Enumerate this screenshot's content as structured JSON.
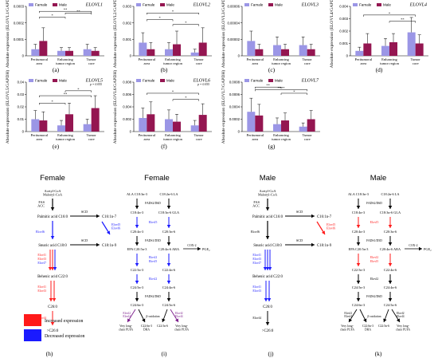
{
  "colors": {
    "female": "#9b96e6",
    "male": "#941651",
    "increased": "#ff1a1a",
    "decreased": "#1a1aff",
    "error": "#000000",
    "neutral": "#000000"
  },
  "legend": {
    "female": "Famale",
    "male": "Male"
  },
  "categories": [
    "Peritumoral area",
    "Enhancing tumor region",
    "Tumor core"
  ],
  "chart_data": [
    {
      "type": "bar",
      "panel": "(a)",
      "gene": "ELOVL1",
      "ylabel": "Absolute expression (ELOVL1/GAPDH)",
      "yticks": [
        "0",
        "0.0001",
        "0.0002",
        "0.0003"
      ],
      "ylim": [
        0,
        0.0003
      ],
      "categories": [
        "Peritumoral area",
        "Enhancing tumor region",
        "Tumor core"
      ],
      "series": [
        {
          "name": "Famale",
          "values": [
            4e-05,
            3e-05,
            4e-05
          ],
          "err": [
            3e-05,
            2e-05,
            3e-05
          ]
        },
        {
          "name": "Male",
          "values": [
            9e-05,
            3e-05,
            3e-05
          ],
          "err": [
            8e-05,
            2e-05,
            2e-05
          ]
        }
      ],
      "annotations": [
        "*",
        "**",
        "**",
        "*"
      ]
    },
    {
      "type": "bar",
      "panel": "(b)",
      "gene": "ELOVL2",
      "ylabel": "Absolute expression (ELOVL2/GAPDH)",
      "yticks": [
        "0",
        "0.001",
        "0.002",
        "0.003"
      ],
      "ylim": [
        0,
        0.003
      ],
      "categories": [
        "Peritumoral area",
        "Enhancing tumor region",
        "Tumor core"
      ],
      "series": [
        {
          "name": "Famale",
          "values": [
            0.0008,
            0.0004,
            0.0002
          ],
          "err": [
            0.0006,
            0.0004,
            0.0002
          ]
        },
        {
          "name": "Male",
          "values": [
            0.0004,
            0.0007,
            0.0008
          ],
          "err": [
            0.0004,
            0.0008,
            0.0009
          ]
        }
      ],
      "annotations": [
        "*",
        "*",
        "*",
        "*",
        "*"
      ]
    },
    {
      "type": "bar",
      "panel": "(c)",
      "gene": "ELOVL3",
      "ylabel": "Absolute expression (ELOVL3/GAPDH)",
      "yticks": [
        "0",
        "0.00002",
        "0.00004",
        "0.00006"
      ],
      "ylim": [
        0,
        6e-05
      ],
      "categories": [
        "Peritumoral area",
        "Enhancing tumor region",
        "Tumor core"
      ],
      "series": [
        {
          "name": "Famale",
          "values": [
            1.8e-05,
            1.3e-05,
            1.3e-05
          ],
          "err": [
            1.2e-05,
            1e-05,
            1e-05
          ]
        },
        {
          "name": "Male",
          "values": [
            8e-06,
            8e-06,
            8e-06
          ],
          "err": [
            6e-06,
            6e-06,
            6e-06
          ]
        }
      ],
      "annotations": []
    },
    {
      "type": "bar",
      "panel": "(d)",
      "gene": "ELOVL4",
      "ylabel": "Absolute expression (ELOVL4/GAPDH)",
      "yticks": [
        "0",
        "0.001",
        "0.002",
        "0.003",
        "0.004"
      ],
      "ylim": [
        0,
        0.004
      ],
      "categories": [
        "Peritumoral area",
        "Enhancing tumor region",
        "Tumor core"
      ],
      "series": [
        {
          "name": "Famale",
          "values": [
            0.0004,
            0.0008,
            0.0019
          ],
          "err": [
            0.0003,
            0.0006,
            0.0012
          ]
        },
        {
          "name": "Male",
          "values": [
            0.001,
            0.0011,
            0.001
          ],
          "err": [
            0.0008,
            0.0007,
            0.0007
          ]
        }
      ],
      "annotations": [
        "*",
        "**"
      ]
    },
    {
      "type": "bar",
      "panel": "(e)",
      "gene": "ELOVL5",
      "ylabel": "Absolute expression (ELOVL5/GAPDH)",
      "yticks": [
        "0",
        "0.01",
        "0.02",
        "0.03",
        "0.04"
      ],
      "ylim": [
        0,
        0.04
      ],
      "categories": [
        "Peritumoral area",
        "Enhancing tumor region",
        "Tumor core"
      ],
      "series": [
        {
          "name": "Famale",
          "values": [
            0.01,
            0.005,
            0.006
          ],
          "err": [
            0.007,
            0.004,
            0.004
          ]
        },
        {
          "name": "Male",
          "values": [
            0.009,
            0.014,
            0.019
          ],
          "err": [
            0.007,
            0.009,
            0.01
          ]
        }
      ],
      "annotations": [
        "p = 0.055",
        "*",
        "**",
        "*",
        "*",
        "**",
        "*"
      ]
    },
    {
      "type": "bar",
      "panel": "(f)",
      "gene": "ELOVL6",
      "ylabel": "Absolute expression (ELOVL6/GAPDH)",
      "yticks": [
        "0",
        "0.002",
        "0.004",
        "0.006",
        "0.008"
      ],
      "ylim": [
        0,
        0.008
      ],
      "categories": [
        "Peritumoral area",
        "Enhancing tumor region",
        "Tumor core"
      ],
      "series": [
        {
          "name": "Famale",
          "values": [
            0.0022,
            0.002,
            0.001
          ],
          "err": [
            0.0016,
            0.0015,
            0.0008
          ]
        },
        {
          "name": "Male",
          "values": [
            0.0028,
            0.0016,
            0.0027
          ],
          "err": [
            0.002,
            0.0012,
            0.0018
          ]
        }
      ],
      "annotations": [
        "p = 0.055",
        "*",
        "*"
      ]
    },
    {
      "type": "bar",
      "panel": "(g)",
      "gene": "ELOVL7",
      "ylabel": "Absolute expression (ELOVL7/GAPDH)",
      "yticks": [
        "0",
        "0.0002",
        "0.0004",
        "0.0006",
        "0.0008"
      ],
      "ylim": [
        0,
        0.0008
      ],
      "categories": [
        "Peritumoral area",
        "Enhancing tumor region",
        "Tumor core"
      ],
      "series": [
        {
          "name": "Famale",
          "values": [
            0.00032,
            0.00012,
            8e-05
          ],
          "err": [
            0.00022,
            0.0001,
            6e-05
          ]
        },
        {
          "name": "Male",
          "values": [
            0.00026,
            0.00018,
            0.0002
          ],
          "err": [
            0.00018,
            0.00012,
            0.00014
          ]
        }
      ],
      "annotations": [
        "**",
        "**",
        "****",
        "*",
        "****",
        "****"
      ]
    }
  ],
  "pathway_panels": [
    {
      "panel": "(h)",
      "title": "Female",
      "nodes": [
        "Acetyl-CoA\nMalonyl-CoA",
        "FAS\nACC",
        "Palmitic acid C16:0",
        "SCD",
        "C16:1n-7",
        "Elovl6",
        "Elovl5\nElovl6",
        "Stearic acid C18:0",
        "SCD",
        "C18:1n-9",
        "Elovl1\nElovl3\nElovl7",
        "Behenic acid C22:0",
        "Elovl1\nElovl3",
        "C26:0",
        "Elovl4",
        ">C26:0"
      ]
    },
    {
      "panel": "(i)",
      "title": "Female",
      "nodes": [
        "ALA C18:3n-3",
        "C18:2n-6 LA",
        "FADS2/D6D",
        "C18:4n-3",
        "C18:3n-6 GLA",
        "Elovl5",
        "C20:4n-3",
        "C20:3n-6",
        "FADS1/D5D",
        "EPA C20:5n-3",
        "C20:4n-6 ARA",
        "COX-2",
        "PGE₂",
        "Elovl2\nElovl5",
        "C22:5n-3",
        "C22:4n-6",
        "Elovl2",
        "C24:5n-3",
        "C24:4n-6",
        "FADS2/D6D",
        "C24:6n-3",
        "C24:5n-6",
        "Elovl2\nElovl4",
        "β-oxidation",
        "Elovl2\nElovl4",
        "Very long-\nchain PUFA",
        "C22:6n-3\nDHA",
        "C22:5n-6",
        "Very long-\nchain PUFA"
      ]
    },
    {
      "panel": "(j)",
      "title": "Male",
      "nodes": [
        "Acetyl-CoA\nMalonyl-CoA",
        "FAS\nACC",
        "Palmitic acid C16:0",
        "SCD",
        "C16:1n-7",
        "Elovl6",
        "Elovl5\nElovl6",
        "Stearic acid C18:0",
        "SCD",
        "C18:1n-9",
        "Elovl1\nElovl3\nElovl7",
        "Behenic acid C22:0",
        "Elovl1\nElovl3",
        "C26:0",
        "Elovl4",
        ">C26:0"
      ]
    },
    {
      "panel": "(k)",
      "title": "Male",
      "nodes": [
        "ALA C18:3n-3",
        "C18:2n-6 LA",
        "FADS2/D6D",
        "C18:4n-3",
        "C18:3n-6 GLA",
        "Elovl5",
        "C20:4n-3",
        "C20:3n-6",
        "FADS1/D5D",
        "EPA C20:5n-3",
        "C20:4n-6 ARA",
        "COX-2",
        "PGE₂",
        "Elovl2\nElovl5",
        "C22:5n-3",
        "C22:4n-6",
        "Elovl2",
        "C24:5n-3",
        "C24:4n-6",
        "FADS2/D6D",
        "C24:6n-3",
        "C24:5n-6",
        "Elovl2\nElovl4",
        "β-oxidation",
        "Elovl2\nElovl4",
        "Very long-\nchain PUFA",
        "C22:6n-3\nDHA",
        "C22:5n-6",
        "Very long-\nchain PUFA"
      ]
    }
  ],
  "key": {
    "increased": "Increased expression",
    "decreased": "Decreased expression"
  }
}
